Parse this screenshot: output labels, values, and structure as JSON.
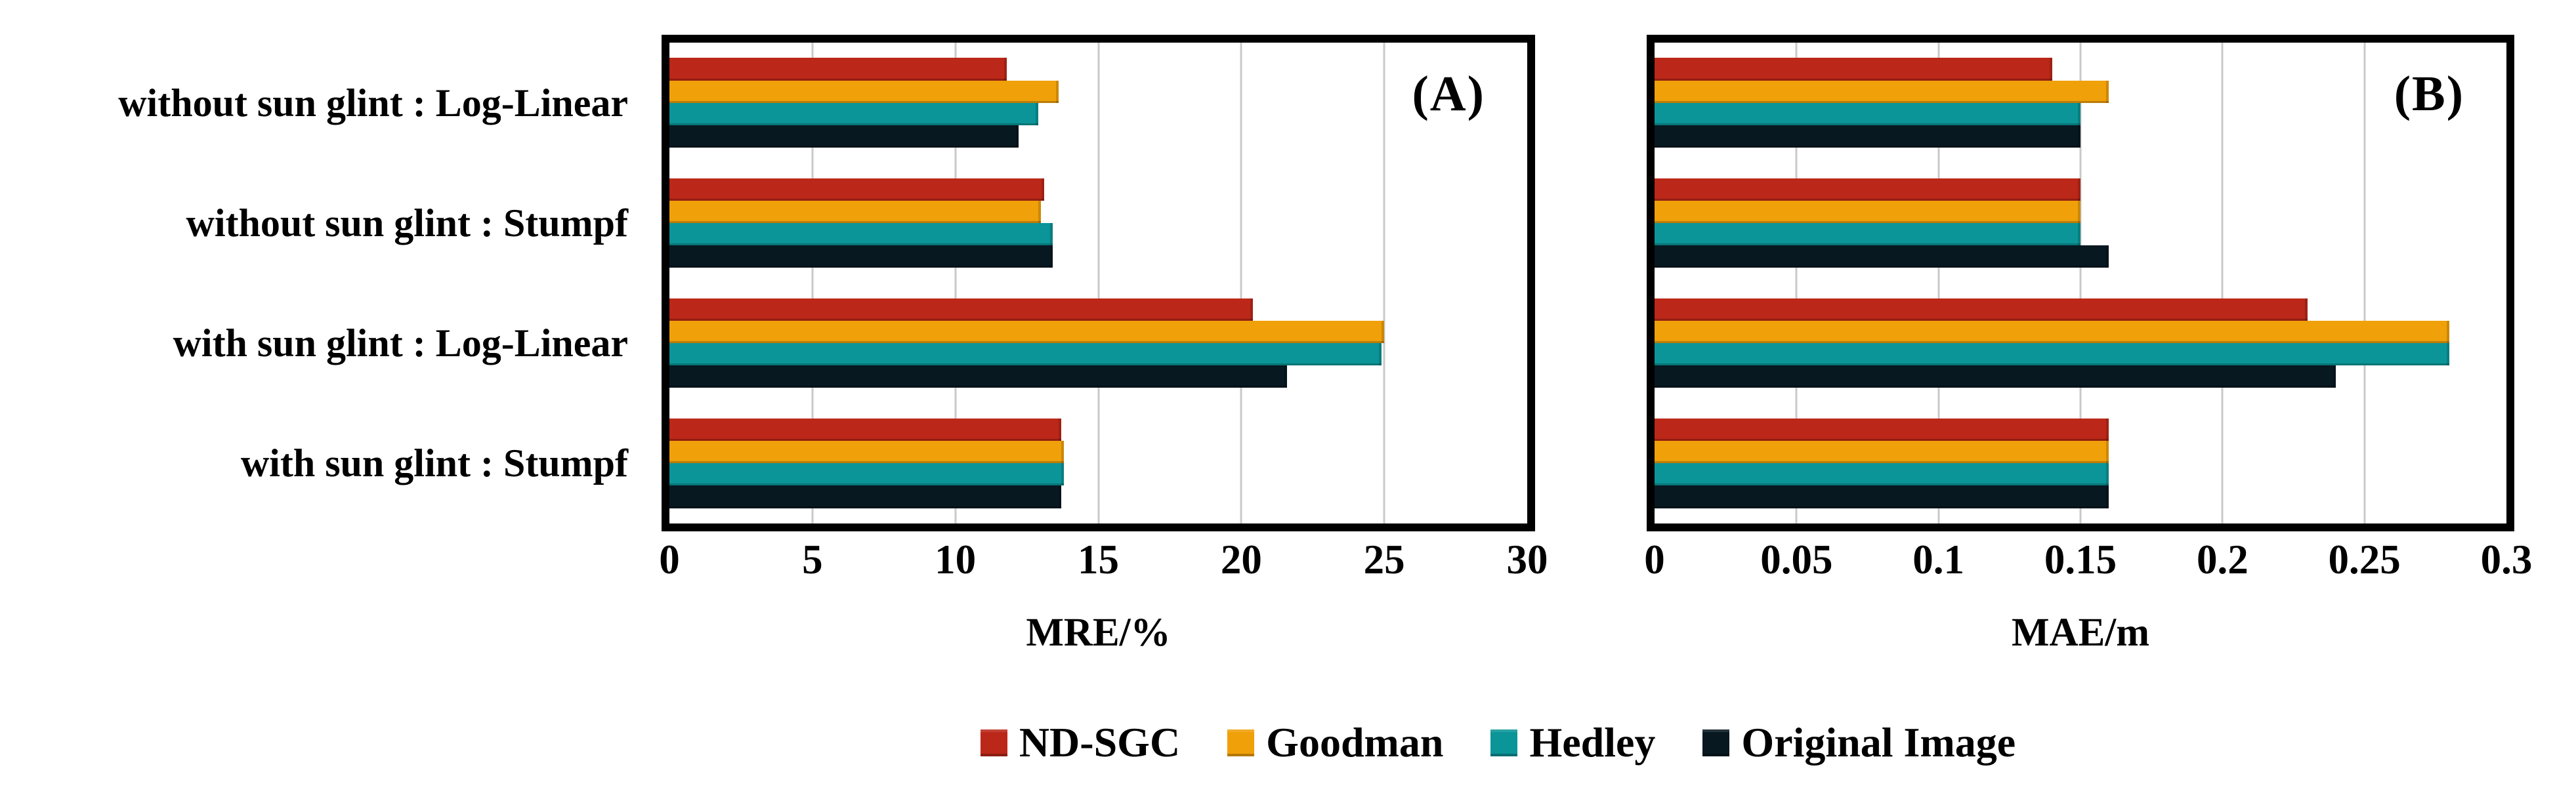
{
  "chart_data": [
    {
      "type": "bar",
      "orientation": "horizontal",
      "panel_label": "(A)",
      "xlabel": "MRE/%",
      "xlim": [
        0,
        30
      ],
      "xticks": [
        "0",
        "5",
        "10",
        "15",
        "20",
        "25",
        "30"
      ],
      "grid": true,
      "categories": [
        "without sun glint : Log-Linear",
        "without sun glint : Stumpf",
        "with sun glint : Log-Linear",
        "with sun glint : Stumpf"
      ],
      "series": [
        {
          "name": "ND-SGC",
          "color": "#bb2718",
          "values": [
            11.8,
            13.1,
            20.4,
            13.7
          ]
        },
        {
          "name": "Goodman",
          "color": "#f0a009",
          "values": [
            13.6,
            13.0,
            25.0,
            13.8
          ]
        },
        {
          "name": "Hedley",
          "color": "#0b9598",
          "values": [
            12.9,
            13.4,
            24.9,
            13.8
          ]
        },
        {
          "name": "Original Image",
          "color": "#071821",
          "values": [
            12.2,
            13.4,
            21.6,
            13.7
          ]
        }
      ]
    },
    {
      "type": "bar",
      "orientation": "horizontal",
      "panel_label": "(B)",
      "xlabel": "MAE/m",
      "xlim": [
        0,
        0.3
      ],
      "xticks": [
        "0",
        "0.05",
        "0.1",
        "0.15",
        "0.2",
        "0.25",
        "0.3"
      ],
      "grid": true,
      "categories": [
        "without sun glint : Log-Linear",
        "without sun glint : Stumpf",
        "with sun glint : Log-Linear",
        "with sun glint : Stumpf"
      ],
      "series": [
        {
          "name": "ND-SGC",
          "color": "#bb2718",
          "values": [
            0.14,
            0.15,
            0.23,
            0.16
          ]
        },
        {
          "name": "Goodman",
          "color": "#f0a009",
          "values": [
            0.16,
            0.15,
            0.28,
            0.16
          ]
        },
        {
          "name": "Hedley",
          "color": "#0b9598",
          "values": [
            0.15,
            0.15,
            0.28,
            0.16
          ]
        },
        {
          "name": "Original Image",
          "color": "#071821",
          "values": [
            0.15,
            0.16,
            0.24,
            0.16
          ]
        }
      ]
    }
  ],
  "legend": {
    "position": "bottom",
    "items": [
      {
        "label": "ND-SGC",
        "color": "#bb2718"
      },
      {
        "label": "Goodman",
        "color": "#f0a009"
      },
      {
        "label": "Hedley",
        "color": "#0b9598"
      },
      {
        "label": "Original Image",
        "color": "#071821"
      }
    ]
  }
}
